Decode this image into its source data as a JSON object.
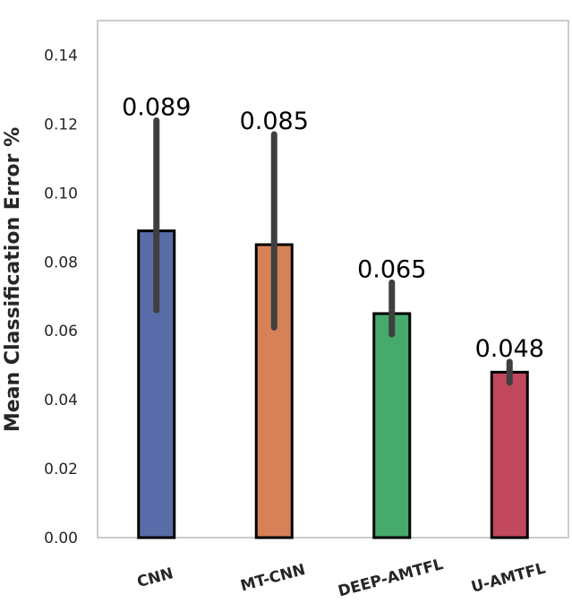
{
  "chart_data": {
    "type": "bar",
    "title": "",
    "xlabel": "",
    "ylabel": "Mean Classification Error %",
    "ylim": [
      0,
      0.15
    ],
    "yticks": [
      "0.00",
      "0.02",
      "0.04",
      "0.06",
      "0.08",
      "0.10",
      "0.12",
      "0.14"
    ],
    "grid": false,
    "categories": [
      "CNN",
      "MT-CNN",
      "DEEP-AMTFL",
      "U-AMTFL"
    ],
    "values": [
      0.089,
      0.085,
      0.065,
      0.048
    ],
    "data_labels": [
      "0.089",
      "0.085",
      "0.065",
      "0.048"
    ],
    "error_low": [
      0.066,
      0.061,
      0.059,
      0.045
    ],
    "error_high": [
      0.121,
      0.117,
      0.074,
      0.051
    ],
    "colors": [
      "#5a6ca8",
      "#d68157",
      "#45aa6b",
      "#c2485d"
    ],
    "error_color": "#3f3f3f",
    "edge_color": "#000000"
  }
}
